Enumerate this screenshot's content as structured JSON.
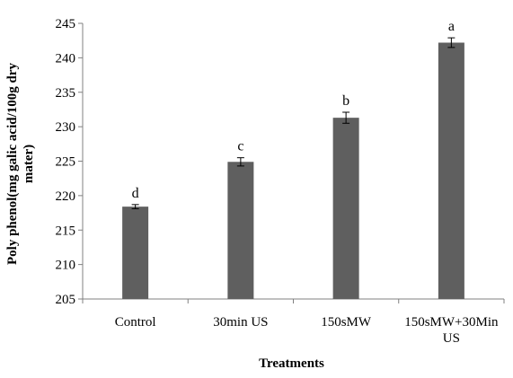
{
  "chart_data": {
    "type": "bar",
    "title": "",
    "xlabel": "Treatments",
    "ylabel": "Poly phenol(mg galic acid/100g dry mater)",
    "ylim": [
      205,
      245
    ],
    "yticks": [
      205,
      210,
      215,
      220,
      225,
      230,
      235,
      240,
      245
    ],
    "categories": [
      "Control",
      "30min US",
      "150sMW",
      "150sMW+30Min US"
    ],
    "values": [
      218.4,
      224.9,
      231.3,
      242.2
    ],
    "errors": [
      0.3,
      0.6,
      0.8,
      0.7
    ],
    "significance_letters": [
      "d",
      "c",
      "b",
      "a"
    ],
    "bar_color": "#5f5f5f",
    "grid": false,
    "legend": "none"
  }
}
